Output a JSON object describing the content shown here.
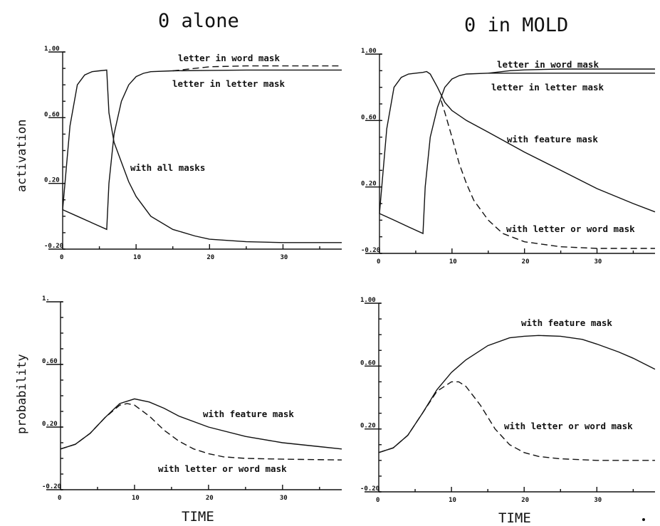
{
  "titles": {
    "left": "0 alone",
    "right": "0 in MOLD"
  },
  "ylabels": {
    "top": "activation",
    "bottom": "probability"
  },
  "xlabels": {
    "left": "TIME",
    "right": "TIME"
  },
  "chart_data": [
    {
      "type": "line",
      "panel": "activation, 0 alone",
      "ylim": [
        -0.2,
        1.0
      ],
      "xlim": [
        0,
        38
      ],
      "yticks": [
        "1.00",
        "0.60",
        "0.20",
        "-0.20"
      ],
      "xticks": [
        "0",
        "10",
        "20",
        "30"
      ],
      "series": [
        {
          "dashed": false,
          "x": [
            0,
            1,
            2,
            3,
            4,
            5,
            6,
            6.3,
            7,
            8,
            9,
            10,
            12,
            15,
            18,
            20,
            25,
            30,
            35,
            38
          ],
          "y": [
            0.04,
            0.55,
            0.8,
            0.86,
            0.88,
            0.885,
            0.89,
            0.63,
            0.45,
            0.33,
            0.21,
            0.12,
            0.0,
            -0.08,
            -0.12,
            -0.14,
            -0.155,
            -0.16,
            -0.16,
            -0.16
          ]
        },
        {
          "dashed": false,
          "x": [
            0,
            2,
            4,
            6,
            6.3,
            7,
            8,
            9,
            10,
            11,
            12,
            15,
            20,
            25,
            30,
            38
          ],
          "y": [
            0.04,
            0.0,
            -0.04,
            -0.08,
            0.2,
            0.5,
            0.7,
            0.8,
            0.85,
            0.87,
            0.88,
            0.885,
            0.888,
            0.89,
            0.89,
            0.89
          ]
        },
        {
          "dashed": true,
          "x": [
            15,
            18,
            20,
            25,
            30,
            38
          ],
          "y": [
            0.885,
            0.9,
            0.91,
            0.915,
            0.915,
            0.915
          ]
        }
      ],
      "labels": {
        "word_mask": "letter in word mask",
        "letter_mask": "letter in letter mask",
        "all_masks": "with all masks"
      }
    },
    {
      "type": "line",
      "panel": "activation, 0 in MOLD",
      "ylim": [
        -0.2,
        1.0
      ],
      "xlim": [
        0,
        38
      ],
      "yticks": [
        "1.00",
        "0.60",
        "0.20",
        "-0.20"
      ],
      "xticks": [
        "0",
        "10",
        "20",
        "30"
      ],
      "series": [
        {
          "dashed": false,
          "x": [
            0,
            1,
            2,
            3,
            4,
            5,
            6,
            6.5,
            7,
            8,
            9,
            10,
            12,
            15,
            20,
            25,
            30,
            35,
            38
          ],
          "y": [
            0.04,
            0.55,
            0.8,
            0.86,
            0.88,
            0.885,
            0.89,
            0.895,
            0.88,
            0.8,
            0.71,
            0.66,
            0.6,
            0.53,
            0.41,
            0.3,
            0.19,
            0.1,
            0.05
          ]
        },
        {
          "dashed": true,
          "x": [
            8.5,
            9,
            10,
            11,
            12,
            13,
            15,
            17,
            20,
            25,
            30,
            38
          ],
          "y": [
            0.72,
            0.65,
            0.5,
            0.34,
            0.22,
            0.12,
            0.0,
            -0.08,
            -0.13,
            -0.16,
            -0.17,
            -0.17
          ]
        },
        {
          "dashed": false,
          "x": [
            0,
            2,
            4,
            6,
            6.3,
            7,
            8,
            9,
            10,
            11,
            12,
            15,
            20,
            30,
            38
          ],
          "y": [
            0.04,
            0.0,
            -0.04,
            -0.08,
            0.2,
            0.5,
            0.68,
            0.8,
            0.85,
            0.87,
            0.88,
            0.885,
            0.885,
            0.885,
            0.885
          ]
        },
        {
          "dashed": false,
          "x": [
            15,
            18,
            20,
            25,
            30,
            38
          ],
          "y": [
            0.885,
            0.9,
            0.905,
            0.91,
            0.91,
            0.91
          ]
        }
      ],
      "labels": {
        "word_mask": "letter in word mask",
        "letter_mask": "letter in letter mask",
        "feature_mask": "with feature mask",
        "letter_or_word": "with letter or word mask"
      }
    },
    {
      "type": "line",
      "panel": "probability, 0 alone",
      "ylim": [
        -0.2,
        1.0
      ],
      "xlim": [
        0,
        38
      ],
      "yticks": [
        "1.",
        "0.60",
        "0.20",
        "-0.20"
      ],
      "xticks": [
        "0",
        "10",
        "20",
        "30"
      ],
      "series": [
        {
          "dashed": false,
          "x": [
            0,
            2,
            4,
            6,
            8,
            10,
            12,
            14,
            16,
            20,
            25,
            30,
            35,
            38
          ],
          "y": [
            0.06,
            0.09,
            0.16,
            0.26,
            0.35,
            0.38,
            0.36,
            0.32,
            0.27,
            0.2,
            0.14,
            0.1,
            0.075,
            0.06
          ]
        },
        {
          "dashed": true,
          "x": [
            0,
            2,
            4,
            6,
            8,
            9,
            10,
            12,
            14,
            16,
            18,
            20,
            22,
            25,
            30,
            38
          ],
          "y": [
            0.06,
            0.09,
            0.16,
            0.26,
            0.34,
            0.35,
            0.34,
            0.27,
            0.18,
            0.11,
            0.06,
            0.03,
            0.01,
            0.0,
            -0.005,
            -0.01
          ]
        }
      ],
      "labels": {
        "feature_mask": "with feature mask",
        "letter_or_word": "with letter or word mask"
      }
    },
    {
      "type": "line",
      "panel": "probability, 0 in MOLD",
      "ylim": [
        -0.2,
        1.0
      ],
      "xlim": [
        0,
        38
      ],
      "yticks": [
        "1.00",
        "0.60",
        "0.20",
        "-0.20"
      ],
      "xticks": [
        "0",
        "10",
        "20",
        "30"
      ],
      "series": [
        {
          "dashed": false,
          "x": [
            0,
            2,
            4,
            6,
            8,
            10,
            12,
            15,
            18,
            20,
            22,
            25,
            28,
            30,
            33,
            35,
            38
          ],
          "y": [
            0.05,
            0.08,
            0.16,
            0.3,
            0.45,
            0.56,
            0.64,
            0.73,
            0.78,
            0.79,
            0.795,
            0.79,
            0.77,
            0.74,
            0.69,
            0.65,
            0.58
          ]
        },
        {
          "dashed": true,
          "x": [
            0,
            2,
            4,
            6,
            8,
            10,
            11,
            12,
            14,
            16,
            18,
            20,
            22,
            25,
            30,
            38
          ],
          "y": [
            0.05,
            0.08,
            0.16,
            0.3,
            0.44,
            0.5,
            0.5,
            0.47,
            0.35,
            0.2,
            0.1,
            0.05,
            0.025,
            0.01,
            0.0,
            0.0
          ]
        }
      ],
      "labels": {
        "feature_mask": "with feature mask",
        "letter_or_word": "with letter or word mask"
      }
    }
  ]
}
